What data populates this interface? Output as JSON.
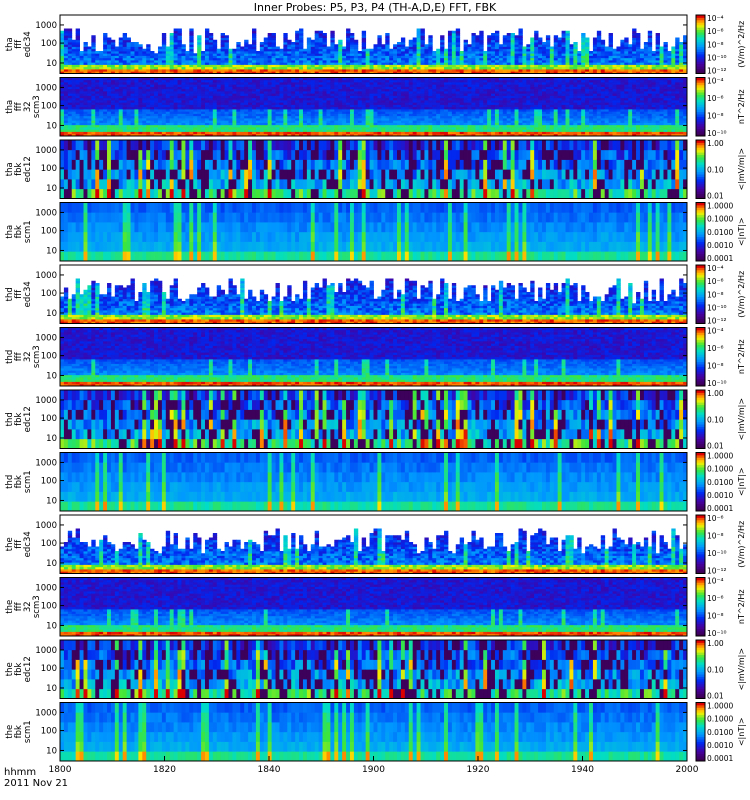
{
  "chart_data": {
    "type": "heatmap",
    "title": "Inner Probes: P5, P3, P4 (TH-A,D,E) FFT, FBK",
    "x_axis": {
      "range": [
        1800,
        2000
      ],
      "unit": "hhmm",
      "ticks": [
        "1800",
        "1820",
        "1840",
        "1900",
        "1920",
        "1940",
        "2000"
      ],
      "footer_label": "hhmm",
      "date_label": "2011 Nov 21"
    },
    "panels": [
      {
        "probe": "tha",
        "label": [
          "tha",
          "fff",
          "edc34"
        ],
        "kind": "fft_e",
        "yticks": [
          "1000",
          "100",
          "10"
        ],
        "cbar_ticks": [
          "10^-4",
          "10^-6",
          "10^-8",
          "10^-10",
          "10^-12"
        ],
        "cbar_label": "(V/m)^2/Hz"
      },
      {
        "probe": "tha",
        "label": [
          "tha",
          "fff",
          "32",
          "scm3"
        ],
        "kind": "fft_b",
        "yticks": [
          "1000",
          "100",
          "10"
        ],
        "cbar_ticks": [
          "10^-4",
          "10^-6",
          "10^-8",
          "10^-10"
        ],
        "cbar_label": "nT^2/Hz"
      },
      {
        "probe": "tha",
        "label": [
          "tha",
          "fbk",
          "edc12"
        ],
        "kind": "fbk_e",
        "yticks": [
          "1000",
          "100",
          "10"
        ],
        "cbar_ticks": [
          "1.00",
          "0.10",
          "0.01"
        ],
        "cbar_label": "<|mV/m|>"
      },
      {
        "probe": "tha",
        "label": [
          "tha",
          "fbk",
          "scm1"
        ],
        "kind": "fbk_b",
        "yticks": [
          "1000",
          "100",
          "10"
        ],
        "cbar_ticks": [
          "1.0000",
          "0.1000",
          "0.0100",
          "0.0010",
          "0.0001"
        ],
        "cbar_label": "<|nT|>"
      },
      {
        "probe": "thd",
        "label": [
          "thd",
          "fff",
          "edc34"
        ],
        "kind": "fft_e",
        "yticks": [
          "1000",
          "100",
          "10"
        ],
        "cbar_ticks": [
          "10^-4",
          "10^-6",
          "10^-8",
          "10^-10",
          "10^-12"
        ],
        "cbar_label": "(V/m)^2/Hz"
      },
      {
        "probe": "thd",
        "label": [
          "thd",
          "fff",
          "32",
          "scm3"
        ],
        "kind": "fft_b",
        "yticks": [
          "1000",
          "100",
          "10"
        ],
        "cbar_ticks": [
          "10^-4",
          "10^-6",
          "10^-8",
          "10^-10"
        ],
        "cbar_label": "nT^2/Hz"
      },
      {
        "probe": "thd",
        "label": [
          "thd",
          "fbk",
          "edc12"
        ],
        "kind": "fbk_e",
        "yticks": [
          "1000",
          "100",
          "10"
        ],
        "cbar_ticks": [
          "1.00",
          "0.10",
          "0.01"
        ],
        "cbar_label": "<|mV/m|>"
      },
      {
        "probe": "thd",
        "label": [
          "thd",
          "fbk",
          "scm1"
        ],
        "kind": "fbk_b",
        "yticks": [
          "1000",
          "100",
          "10"
        ],
        "cbar_ticks": [
          "1.0000",
          "0.1000",
          "0.0100",
          "0.0010",
          "0.0001"
        ],
        "cbar_label": "<|nT|>"
      },
      {
        "probe": "the",
        "label": [
          "the",
          "fff",
          "edc34"
        ],
        "kind": "fft_e",
        "yticks": [
          "1000",
          "100",
          "10"
        ],
        "cbar_ticks": [
          "10^-6",
          "10^-8",
          "10^-10",
          "10^-12"
        ],
        "cbar_label": "(V/m)^2/Hz"
      },
      {
        "probe": "the",
        "label": [
          "the",
          "fff",
          "32",
          "scm3"
        ],
        "kind": "fft_b",
        "yticks": [
          "1000",
          "100",
          "10"
        ],
        "cbar_ticks": [
          "10^-4",
          "10^-6",
          "10^-8",
          "10^-10"
        ],
        "cbar_label": "nT^2/Hz"
      },
      {
        "probe": "the",
        "label": [
          "the",
          "fbk",
          "edc12"
        ],
        "kind": "fbk_e",
        "yticks": [
          "1000",
          "100",
          "10"
        ],
        "cbar_ticks": [
          "1.00",
          "0.10",
          "0.01"
        ],
        "cbar_label": "<|mV/m|>"
      },
      {
        "probe": "the",
        "label": [
          "the",
          "fbk",
          "scm1"
        ],
        "kind": "fbk_b",
        "yticks": [
          "1000",
          "100",
          "10"
        ],
        "cbar_ticks": [
          "1.0000",
          "0.1000",
          "0.0100",
          "0.0010",
          "0.0001"
        ],
        "cbar_label": "<|nT|>"
      }
    ]
  }
}
